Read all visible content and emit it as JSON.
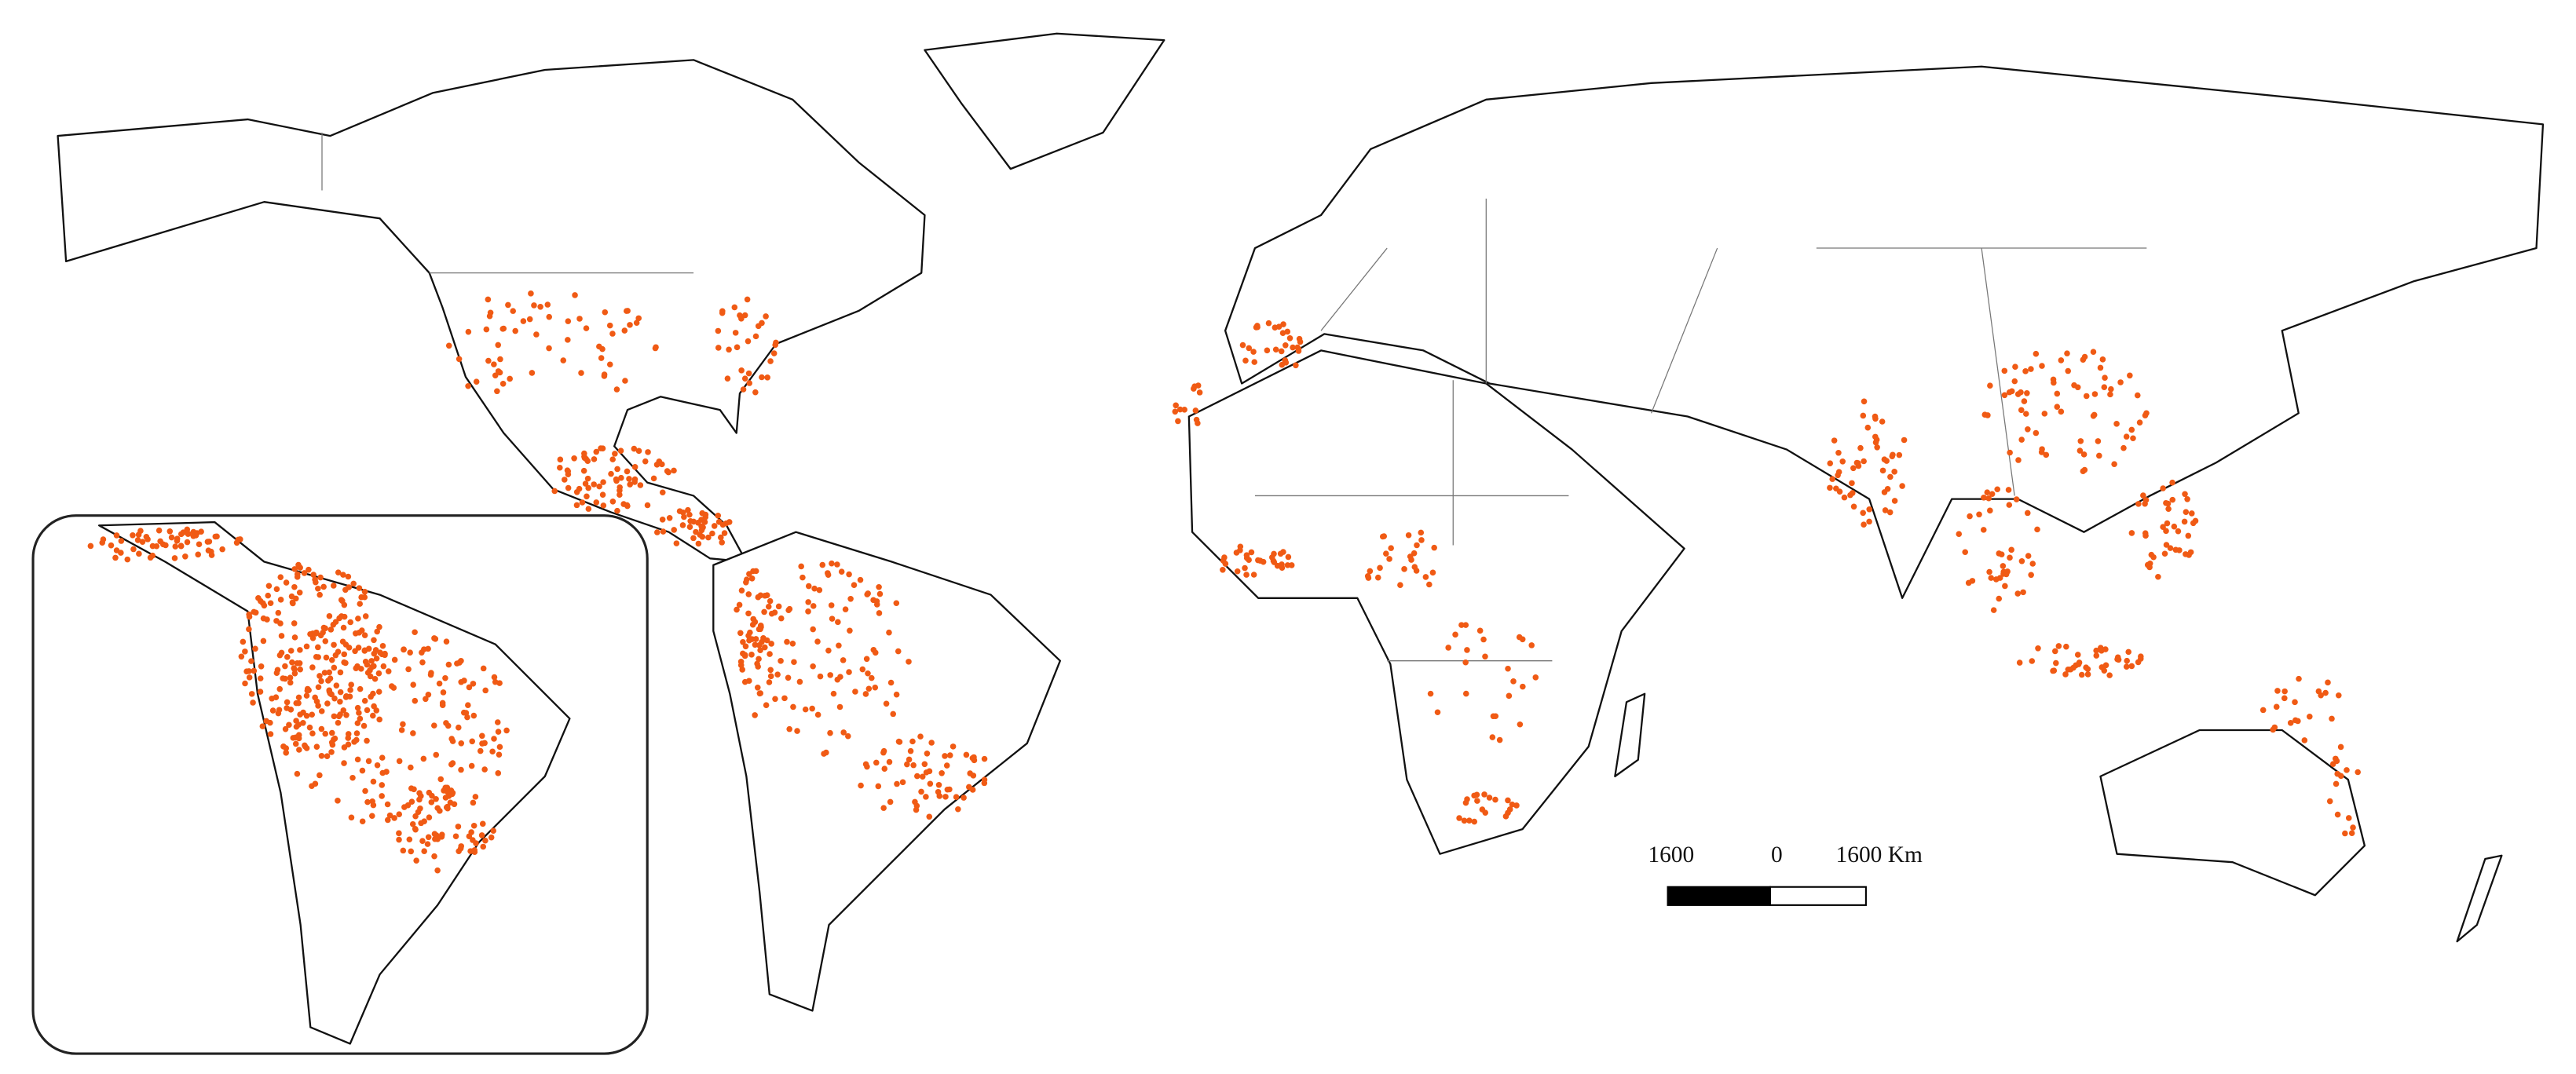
{
  "scale_bar": {
    "left_label": "1600",
    "center_label": "0",
    "right_label": "1600 Km"
  }
}
